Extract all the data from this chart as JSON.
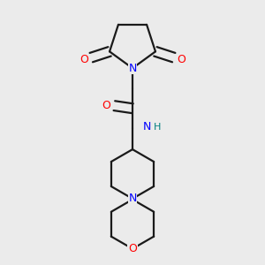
{
  "background_color": "#ebebeb",
  "bond_color": "#1a1a1a",
  "nitrogen_color": "#0000ff",
  "oxygen_color": "#ff0000",
  "nh_color": "#008080",
  "line_width": 1.6,
  "figsize": [
    3.0,
    3.0
  ],
  "dpi": 100,
  "xlim": [
    0.15,
    0.85
  ],
  "ylim": [
    0.02,
    1.0
  ]
}
